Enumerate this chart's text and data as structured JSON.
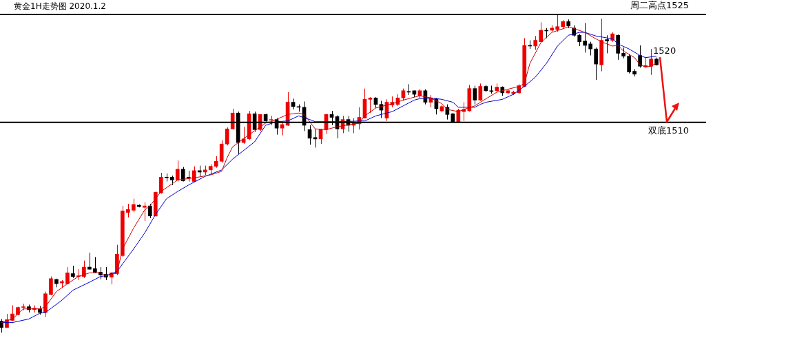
{
  "chart_data": {
    "type": "candlestick",
    "title": "黄金1H走势图 2020.1.2",
    "categories": [
      null,
      null,
      null,
      null,
      null,
      null,
      null,
      null,
      null,
      null,
      null,
      null,
      null,
      null,
      null,
      null,
      null,
      null,
      null,
      null,
      null,
      null,
      null,
      null,
      null,
      null,
      null,
      null,
      null,
      null,
      null,
      null,
      null,
      null,
      null,
      null,
      null,
      null,
      null,
      null,
      null,
      null,
      null,
      null,
      null,
      null,
      null,
      null,
      null,
      null,
      null,
      null,
      null,
      null,
      null,
      null,
      null,
      null,
      null,
      null,
      null,
      null,
      null,
      null,
      null,
      null,
      null,
      null,
      null,
      null,
      null,
      null,
      null,
      null,
      null,
      null,
      null,
      null,
      null,
      null,
      null,
      null,
      null,
      null,
      null,
      null,
      null,
      null,
      null,
      null,
      null,
      null,
      null,
      null,
      null,
      null,
      null,
      null,
      null,
      null,
      null,
      null,
      null,
      null,
      null,
      null,
      null,
      null,
      null,
      null,
      null,
      null,
      null,
      null,
      null,
      null,
      null,
      null,
      null,
      null
    ],
    "ylim": [
      1477,
      1527
    ],
    "tick_labels": false,
    "ohlc": [
      [
        1482.4,
        1482.7,
        1480.8,
        1481.5
      ],
      [
        1481.5,
        1483.4,
        1481.5,
        1482.6
      ],
      [
        1482.5,
        1484.6,
        1482.4,
        1483.4
      ],
      [
        1483.3,
        1484.4,
        1483.2,
        1484.3
      ],
      [
        1484.3,
        1484.8,
        1483.9,
        1484.4
      ],
      [
        1484.4,
        1484.7,
        1483.6,
        1484.0
      ],
      [
        1484.0,
        1484.6,
        1483.6,
        1484.2
      ],
      [
        1484.1,
        1484.5,
        1483.3,
        1483.6
      ],
      [
        1483.6,
        1486.5,
        1483.0,
        1486.2
      ],
      [
        1486.1,
        1488.6,
        1486.0,
        1488.3
      ],
      [
        1488.2,
        1488.3,
        1487.1,
        1487.6
      ],
      [
        1487.7,
        1488.1,
        1487.0,
        1487.9
      ],
      [
        1487.6,
        1489.9,
        1487.5,
        1489.1
      ],
      [
        1489.0,
        1490.1,
        1488.4,
        1488.6
      ],
      [
        1488.6,
        1489.6,
        1488.1,
        1488.7
      ],
      [
        1488.6,
        1490.8,
        1488.4,
        1489.9
      ],
      [
        1489.9,
        1491.9,
        1489.6,
        1489.6
      ],
      [
        1489.7,
        1491.3,
        1489.1,
        1489.2
      ],
      [
        1489.2,
        1489.9,
        1488.2,
        1488.8
      ],
      [
        1488.9,
        1489.9,
        1488.1,
        1488.5
      ],
      [
        1488.5,
        1489.2,
        1487.5,
        1489.1
      ],
      [
        1489.0,
        1493.0,
        1488.8,
        1491.7
      ],
      [
        1491.5,
        1498.4,
        1491.3,
        1497.7
      ],
      [
        1497.5,
        1498.7,
        1496.8,
        1497.9
      ],
      [
        1497.8,
        1499.4,
        1497.5,
        1498.6
      ],
      [
        1498.5,
        1498.6,
        1498.2,
        1498.3
      ],
      [
        1498.2,
        1498.9,
        1496.3,
        1498.4
      ],
      [
        1498.4,
        1498.7,
        1496.7,
        1497.0
      ],
      [
        1497.0,
        1500.4,
        1496.9,
        1500.3
      ],
      [
        1500.2,
        1503.0,
        1500.1,
        1502.4
      ],
      [
        1502.4,
        1502.9,
        1501.8,
        1502.3
      ],
      [
        1502.4,
        1502.6,
        1501.3,
        1502.0
      ],
      [
        1502.0,
        1504.7,
        1501.8,
        1503.5
      ],
      [
        1503.5,
        1503.8,
        1501.8,
        1501.9
      ],
      [
        1502.4,
        1503.3,
        1501.8,
        1502.3
      ],
      [
        1501.8,
        1503.9,
        1501.7,
        1503.3
      ],
      [
        1503.3,
        1504.0,
        1502.5,
        1503.1
      ],
      [
        1503.1,
        1504.0,
        1502.7,
        1503.4
      ],
      [
        1503.4,
        1504.2,
        1502.8,
        1503.9
      ],
      [
        1503.9,
        1505.3,
        1503.7,
        1504.6
      ],
      [
        1504.6,
        1507.5,
        1504.4,
        1507.0
      ],
      [
        1507.0,
        1509.3,
        1506.8,
        1509.1
      ],
      [
        1509.1,
        1511.9,
        1509.0,
        1511.3
      ],
      [
        1511.3,
        1511.5,
        1505.6,
        1507.2
      ],
      [
        1507.2,
        1509.4,
        1507.0,
        1507.7
      ],
      [
        1507.7,
        1511.6,
        1507.6,
        1511.2
      ],
      [
        1511.2,
        1511.5,
        1508.7,
        1509.0
      ],
      [
        1509.0,
        1511.1,
        1508.8,
        1511.1
      ],
      [
        1511.1,
        1511.2,
        1510.1,
        1510.2
      ],
      [
        1510.3,
        1510.9,
        1509.6,
        1510.4
      ],
      [
        1510.4,
        1510.6,
        1508.3,
        1509.2
      ],
      [
        1509.2,
        1510.1,
        1508.2,
        1509.7
      ],
      [
        1509.6,
        1514.2,
        1509.5,
        1512.8
      ],
      [
        1512.8,
        1513.3,
        1511.8,
        1512.2
      ],
      [
        1512.2,
        1512.5,
        1511.5,
        1512.1
      ],
      [
        1512.1,
        1512.9,
        1508.8,
        1509.6
      ],
      [
        1509.0,
        1509.6,
        1506.9,
        1507.8
      ],
      [
        1507.9,
        1509.1,
        1506.5,
        1507.7
      ],
      [
        1507.7,
        1509.1,
        1507.0,
        1509.0
      ],
      [
        1509.0,
        1511.2,
        1508.4,
        1511.1
      ],
      [
        1511.1,
        1511.6,
        1509.6,
        1510.7
      ],
      [
        1510.8,
        1511.0,
        1507.8,
        1509.1
      ],
      [
        1509.1,
        1510.9,
        1508.5,
        1510.4
      ],
      [
        1510.4,
        1510.9,
        1508.7,
        1509.6
      ],
      [
        1509.6,
        1510.6,
        1508.5,
        1510.0
      ],
      [
        1509.8,
        1512.1,
        1509.0,
        1510.7
      ],
      [
        1510.6,
        1514.7,
        1510.6,
        1513.2
      ],
      [
        1513.2,
        1513.5,
        1511.3,
        1513.4
      ],
      [
        1513.4,
        1513.5,
        1512.0,
        1512.5
      ],
      [
        1512.5,
        1513.0,
        1510.6,
        1511.7
      ],
      [
        1510.6,
        1513.2,
        1510.2,
        1512.8
      ],
      [
        1512.4,
        1513.6,
        1512.1,
        1512.8
      ],
      [
        1512.5,
        1513.9,
        1512.3,
        1513.4
      ],
      [
        1513.4,
        1514.7,
        1513.0,
        1514.4
      ],
      [
        1514.3,
        1515.3,
        1513.8,
        1514.2
      ],
      [
        1514.4,
        1514.4,
        1513.5,
        1513.9
      ],
      [
        1513.7,
        1514.6,
        1513.4,
        1514.4
      ],
      [
        1514.4,
        1514.6,
        1512.5,
        1512.8
      ],
      [
        1512.8,
        1513.8,
        1512.1,
        1513.4
      ],
      [
        1513.3,
        1513.4,
        1511.1,
        1511.9
      ],
      [
        1511.6,
        1512.4,
        1511.4,
        1512.2
      ],
      [
        1512.1,
        1512.5,
        1510.4,
        1511.1
      ],
      [
        1511.2,
        1511.3,
        1509.9,
        1510.1
      ],
      [
        1510.1,
        1511.9,
        1509.9,
        1511.7
      ],
      [
        1511.5,
        1512.8,
        1510.2,
        1511.8
      ],
      [
        1511.6,
        1515.2,
        1511.5,
        1514.7
      ],
      [
        1514.7,
        1515.1,
        1512.5,
        1513.1
      ],
      [
        1513.1,
        1515.4,
        1513.0,
        1515.0
      ],
      [
        1515.0,
        1515.2,
        1514.2,
        1514.4
      ],
      [
        1514.4,
        1515.1,
        1514.0,
        1514.3
      ],
      [
        1514.4,
        1515.4,
        1514.2,
        1514.9
      ],
      [
        1514.9,
        1515.0,
        1513.7,
        1514.1
      ],
      [
        1514.1,
        1514.6,
        1513.9,
        1514.4
      ],
      [
        1514.0,
        1514.4,
        1513.8,
        1514.2
      ],
      [
        1514.1,
        1515.3,
        1514.0,
        1515.1
      ],
      [
        1515.0,
        1521.7,
        1514.9,
        1520.7
      ],
      [
        1520.7,
        1521.4,
        1520.2,
        1520.6
      ],
      [
        1520.6,
        1522.0,
        1520.1,
        1521.4
      ],
      [
        1521.2,
        1523.9,
        1521.1,
        1522.8
      ],
      [
        1522.8,
        1523.1,
        1521.7,
        1522.7
      ],
      [
        1522.8,
        1523.5,
        1522.6,
        1523.1
      ],
      [
        1522.9,
        1524.9,
        1522.6,
        1523.3
      ],
      [
        1523.3,
        1524.2,
        1523.0,
        1524.0
      ],
      [
        1524.0,
        1524.3,
        1523.1,
        1523.4
      ],
      [
        1523.1,
        1523.5,
        1521.9,
        1522.1
      ],
      [
        1522.1,
        1522.3,
        1520.6,
        1521.2
      ],
      [
        1521.3,
        1523.8,
        1519.7,
        1520.7
      ],
      [
        1520.9,
        1521.2,
        1519.3,
        1520.2
      ],
      [
        1520.2,
        1520.4,
        1515.9,
        1518.1
      ],
      [
        1518.0,
        1524.4,
        1517.1,
        1521.4
      ],
      [
        1521.5,
        1522.1,
        1519.6,
        1521.3
      ],
      [
        1521.4,
        1522.5,
        1521.2,
        1522.3
      ],
      [
        1522.1,
        1522.2,
        1518.7,
        1519.6
      ],
      [
        1519.6,
        1520.4,
        1518.9,
        1519.2
      ],
      [
        1519.2,
        1519.5,
        1516.8,
        1517.0
      ],
      [
        1517.1,
        1517.4,
        1516.4,
        1516.7
      ],
      [
        1519.3,
        1520.7,
        1517.6,
        1517.8
      ],
      [
        1517.7,
        1519.0,
        1517.6,
        1517.9
      ],
      [
        1517.8,
        1520.2,
        1516.6,
        1518.8
      ],
      [
        1518.8,
        1519.0,
        1517.9,
        1518.0
      ]
    ],
    "colors": [
      "#000000",
      "#ee0000",
      "#ee0000",
      "#ee0000",
      "#ee0000",
      "#000000",
      "#ee0000",
      "#000000",
      "#ee0000",
      "#ee0000",
      "#000000",
      "#ee0000",
      "#ee0000",
      "#000000",
      "#ee0000",
      "#ee0000",
      "#000000",
      "#000000",
      "#000000",
      "#000000",
      "#ee0000",
      "#ee0000",
      "#ee0000",
      "#ee0000",
      "#ee0000",
      "#000000",
      "#ee0000",
      "#000000",
      "#ee0000",
      "#ee0000",
      "#000000",
      "#000000",
      "#ee0000",
      "#000000",
      "#000000",
      "#ee0000",
      "#000000",
      "#ee0000",
      "#ee0000",
      "#ee0000",
      "#ee0000",
      "#ee0000",
      "#ee0000",
      "#000000",
      "#ee0000",
      "#ee0000",
      "#000000",
      "#ee0000",
      "#000000",
      "#ee0000",
      "#000000",
      "#ee0000",
      "#ee0000",
      "#000000",
      "#000000",
      "#000000",
      "#000000",
      "#000000",
      "#ee0000",
      "#ee0000",
      "#000000",
      "#000000",
      "#ee0000",
      "#000000",
      "#ee0000",
      "#ee0000",
      "#ee0000",
      "#ee0000",
      "#000000",
      "#000000",
      "#ee0000",
      "#ee0000",
      "#ee0000",
      "#ee0000",
      "#000000",
      "#000000",
      "#ee0000",
      "#000000",
      "#ee0000",
      "#000000",
      "#ee0000",
      "#000000",
      "#000000",
      "#ee0000",
      "#ee0000",
      "#ee0000",
      "#000000",
      "#ee0000",
      "#000000",
      "#000000",
      "#ee0000",
      "#000000",
      "#ee0000",
      "#ee0000",
      "#ee0000",
      "#ee0000",
      "#000000",
      "#ee0000",
      "#ee0000",
      "#000000",
      "#ee0000",
      "#ee0000",
      "#ee0000",
      "#000000",
      "#000000",
      "#000000",
      "#000000",
      "#000000",
      "#000000",
      "#ee0000",
      "#000000",
      "#ee0000",
      "#000000",
      "#000000",
      "#000000",
      "#000000",
      "#000000",
      "#ee0000",
      "#ee0000",
      "#000000"
    ],
    "series": [
      {
        "type": "line",
        "color": "#cc0000",
        "values": [
          1482.2,
          null,
          1482.7,
          null,
          1484.1,
          null,
          null,
          1484.1,
          1484.4,
          null,
          1486.5,
          null,
          1487.6,
          null,
          1488.6,
          null,
          1489.1,
          null,
          1489.1,
          1488.7,
          null,
          1489.1,
          1492.4,
          null,
          1495.3,
          null,
          1497.8,
          1498.4,
          null,
          1500.4,
          null,
          null,
          1502.0,
          null,
          null,
          1502.3,
          null,
          null,
          1502.7,
          null,
          1503.2,
          1505.1,
          1506.6,
          null,
          null,
          1508.3,
          null,
          null,
          1509.9,
          1510.1,
          null,
          null,
          1511.1,
          null,
          1511.3,
          1511.1,
          null,
          1509.1,
          null,
          1509.0,
          null,
          1509.4,
          null,
          null,
          null,
          1509.9,
          1510.9,
          null,
          1512.0,
          null,
          null,
          1512.6,
          null,
          1513.1,
          null,
          1513.5,
          1513.7,
          null,
          1513.4,
          null,
          1512.6,
          1511.8,
          null,
          1511.5,
          1511.8,
          null,
          1512.3,
          1512.8,
          null,
          null,
          1514.2,
          null,
          null,
          null,
          1515.0,
          1515.4,
          1518.2,
          null,
          1521.1,
          null,
          1522.5,
          null,
          1523.0,
          1523.3,
          null,
          null,
          1522.5,
          null,
          1521.6,
          1521.2,
          null,
          1520.6,
          1520.7,
          1519.9,
          null,
          1519.0,
          1518.0,
          1517.7,
          1517.8,
          1518.3
        ]
      },
      {
        "type": "line",
        "color": "#0000cc",
        "values": [
          1482.2,
          null,
          1482.2,
          null,
          null,
          1482.7,
          null,
          1483.5,
          1483.6,
          null,
          null,
          1485.3,
          null,
          1486.7,
          null,
          null,
          1487.8,
          null,
          1488.6,
          1488.7,
          null,
          1489.3,
          null,
          null,
          1492.4,
          null,
          1494.6,
          null,
          1497.2,
          null,
          1499.4,
          null,
          1500.4,
          null,
          1501.3,
          null,
          null,
          1502.5,
          null,
          null,
          1503.4,
          null,
          1504.9,
          null,
          null,
          null,
          1507.3,
          null,
          1509.6,
          null,
          1510.1,
          null,
          1510.2,
          null,
          1510.9,
          null,
          1510.4,
          1510.1,
          null,
          1510.1,
          null,
          null,
          1510.1,
          null,
          null,
          1510.2,
          1510.2,
          null,
          1510.9,
          null,
          null,
          1511.5,
          null,
          1512.3,
          null,
          1513.1,
          1513.3,
          null,
          1513.4,
          null,
          1513.2,
          null,
          1512.8,
          1512.1,
          null,
          null,
          1512.1,
          1512.5,
          1512.8,
          null,
          null,
          1513.2,
          null,
          1513.9,
          null,
          1515.0,
          null,
          1516.3,
          null,
          1518.2,
          null,
          1520.6,
          null,
          1522.1,
          null,
          1522.5,
          1522.5,
          null,
          1522.0,
          null,
          null,
          1521.6,
          1520.9,
          null,
          1520.2,
          null,
          1519.3,
          1519.0,
          null,
          1519.2
        ]
      }
    ],
    "ref_lines": [
      {
        "axis": "y",
        "value": 1525,
        "label": "周二高点1525",
        "color": "#000000"
      },
      {
        "axis": "y",
        "value": 1510,
        "label": "双底1510",
        "color": "#000000"
      }
    ],
    "annotations": [
      "1520"
    ]
  }
}
